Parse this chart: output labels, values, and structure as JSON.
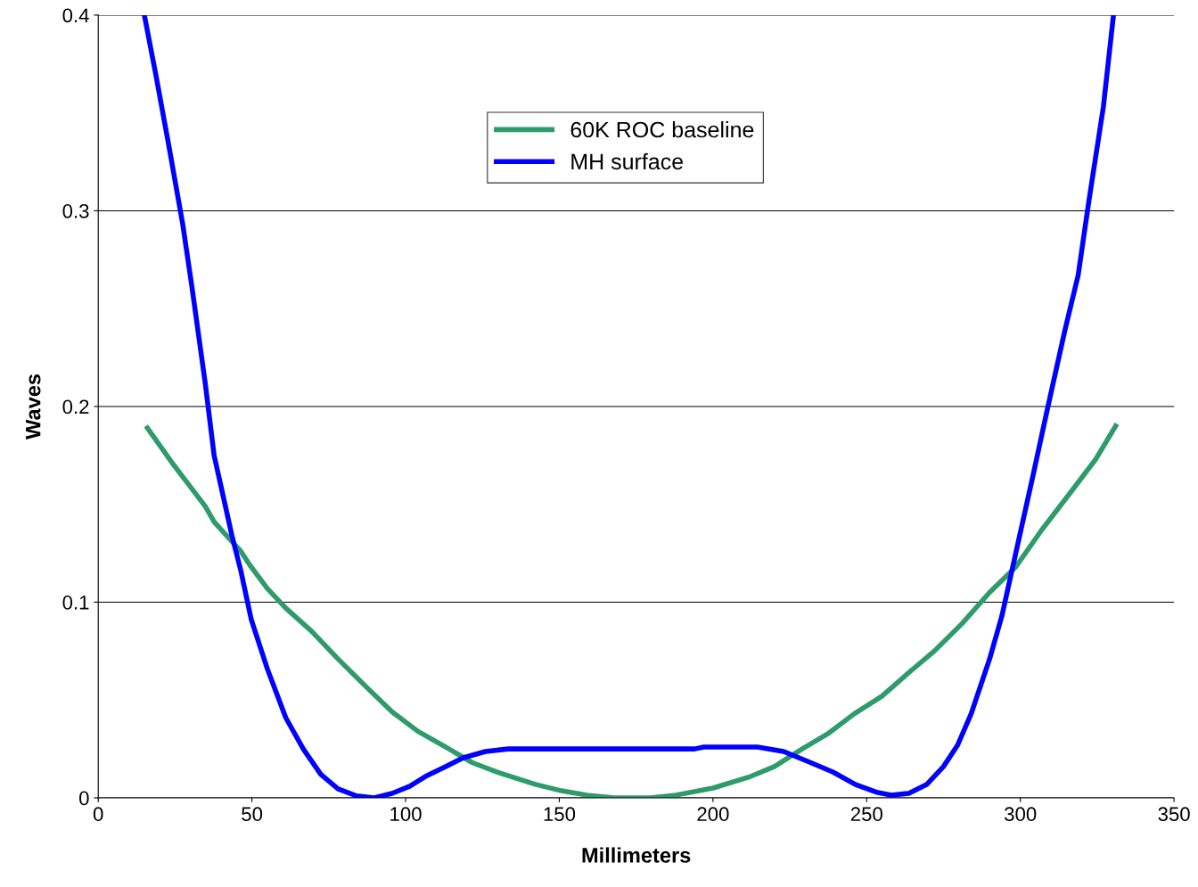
{
  "chart_data": {
    "type": "line",
    "xlabel": "Millimeters",
    "ylabel": "Waves",
    "xlim": [
      0,
      350
    ],
    "xticks": [
      0,
      50,
      100,
      150,
      200,
      250,
      300,
      350
    ],
    "ylim": [
      0,
      0.4
    ],
    "yticks": [
      0,
      0.1,
      0.2,
      0.3,
      0.4
    ],
    "grid": "y",
    "legend": "top",
    "marker": "none",
    "line_style": "solid",
    "series": [
      {
        "name": "60K ROC baseline",
        "color": "#2e9b6a",
        "x": [
          16,
          24.6,
          29,
          34.8,
          37.7,
          46.4,
          49.3,
          55,
          61,
          69.5,
          78,
          87,
          95.6,
          104,
          113,
          121.7,
          130,
          142,
          150.7,
          159,
          168,
          179.6,
          188,
          200,
          211.5,
          220,
          229,
          237.6,
          246,
          255,
          263.7,
          272,
          281,
          290,
          298.5,
          307,
          315.8,
          324.5,
          331
        ],
        "values": [
          0.189,
          0.17,
          0.161,
          0.149,
          0.141,
          0.126,
          0.119,
          0.107,
          0.097,
          0.085,
          0.071,
          0.057,
          0.044,
          0.034,
          0.026,
          0.018,
          0.013,
          0.007,
          0.0036,
          0.0014,
          0,
          0,
          0.0014,
          0.005,
          0.0105,
          0.016,
          0.025,
          0.033,
          0.043,
          0.052,
          0.064,
          0.075,
          0.089,
          0.105,
          0.118,
          0.137,
          0.155,
          0.173,
          0.19
        ]
      },
      {
        "name": "MH surface",
        "color": "#0000ff",
        "x": [
          15,
          18.8,
          23,
          27.5,
          30.4,
          34.8,
          37.7,
          43.5,
          46.4,
          49.8,
          55,
          61,
          66.7,
          72.4,
          78,
          84,
          89.8,
          95.6,
          101.4,
          107,
          113,
          118.8,
          126,
          133.3,
          194,
          197,
          214.5,
          223,
          231.8,
          239,
          246.4,
          253.6,
          258,
          263.7,
          269.5,
          275,
          279.6,
          284,
          290,
          294,
          298.5,
          304.3,
          308.7,
          314.5,
          318.8,
          322.3,
          327,
          330.3
        ],
        "values": [
          0.4,
          0.369,
          0.333,
          0.293,
          0.262,
          0.212,
          0.175,
          0.134,
          0.116,
          0.091,
          0.066,
          0.041,
          0.025,
          0.012,
          0.0046,
          0.001,
          0,
          0.0023,
          0.006,
          0.0114,
          0.016,
          0.0205,
          0.0237,
          0.025,
          0.025,
          0.026,
          0.026,
          0.0237,
          0.018,
          0.0132,
          0.0068,
          0.0027,
          0.0014,
          0.0023,
          0.0068,
          0.016,
          0.027,
          0.043,
          0.071,
          0.093,
          0.125,
          0.166,
          0.198,
          0.239,
          0.267,
          0.305,
          0.353,
          0.4
        ]
      }
    ]
  }
}
